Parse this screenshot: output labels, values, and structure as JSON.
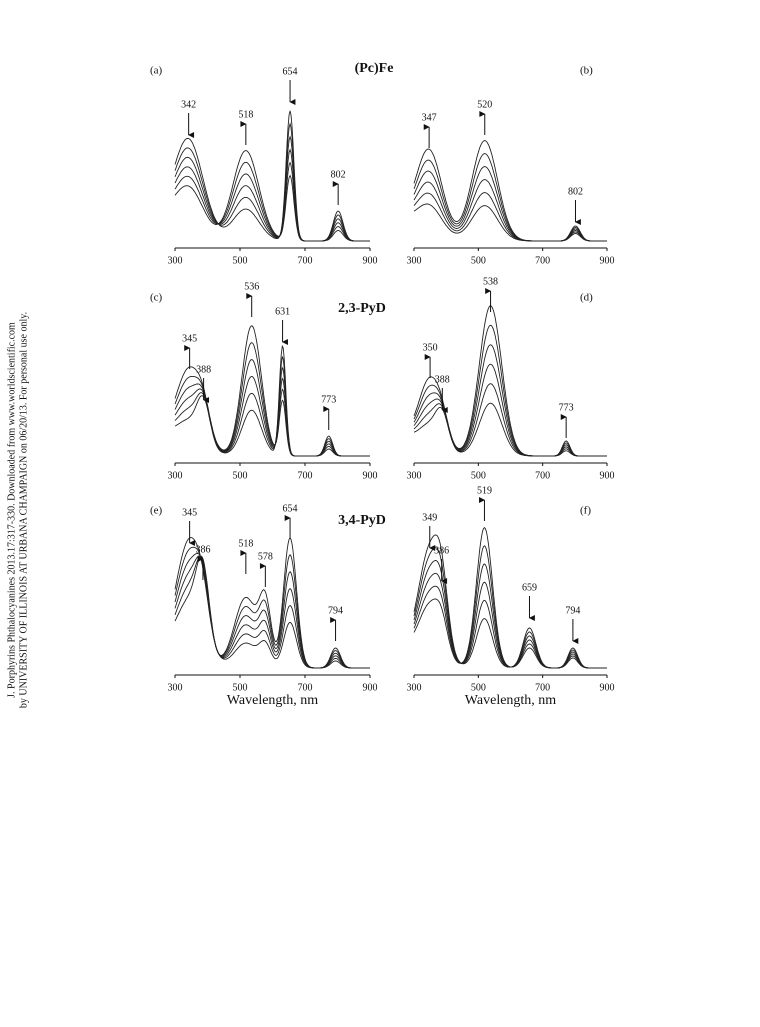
{
  "side_note": [
    "J. Porphyrins Phthalocyanines 2013.17:317-330. Downloaded from www.worldscientific.com",
    "by UNIVERSITY OF ILLINOIS AT URBANA CHAMPAIGN on 06/20/13. For personal use only."
  ],
  "rows": [
    {
      "compound": "(Pc)Fe"
    },
    {
      "compound": "2,3-PyD"
    },
    {
      "compound": "3,4-PyD"
    }
  ],
  "panels": [
    {
      "label": "(a)",
      "xticks": [
        300,
        500,
        700,
        900
      ],
      "peaks": [
        {
          "label": 342,
          "arrow": "down"
        },
        {
          "label": 518,
          "arrow": "up"
        },
        {
          "label": 654,
          "arrow": "down"
        },
        {
          "label": 802,
          "arrow": "up"
        }
      ]
    },
    {
      "label": "(b)",
      "xticks": [
        300,
        500,
        700,
        900
      ],
      "peaks": [
        {
          "label": 347,
          "arrow": "up"
        },
        {
          "label": 520,
          "arrow": "up"
        },
        {
          "label": 802,
          "arrow": "down"
        }
      ]
    },
    {
      "label": "(c)",
      "xticks": [
        300,
        500,
        700,
        900
      ],
      "peaks": [
        {
          "label": 345,
          "arrow": "up"
        },
        {
          "label": 388,
          "arrow": "down"
        },
        {
          "label": 536,
          "arrow": "up"
        },
        {
          "label": 631,
          "arrow": "down"
        },
        {
          "label": 773,
          "arrow": "up"
        }
      ]
    },
    {
      "label": "(d)",
      "xticks": [
        300,
        500,
        700,
        900
      ],
      "peaks": [
        {
          "label": 350,
          "arrow": "up"
        },
        {
          "label": 388,
          "arrow": "down"
        },
        {
          "label": 538,
          "arrow": "up"
        },
        {
          "label": 773,
          "arrow": "up"
        }
      ]
    },
    {
      "label": "(e)",
      "xticks": [
        300,
        500,
        700,
        900
      ],
      "xlabel": "Wavelength, nm",
      "peaks": [
        {
          "label": 345,
          "arrow": "down"
        },
        {
          "label": 386,
          "arrow": "up"
        },
        {
          "label": 518,
          "arrow": "up"
        },
        {
          "label": 578,
          "arrow": "up"
        },
        {
          "label": 654,
          "arrow": "up"
        },
        {
          "label": 794,
          "arrow": "up"
        }
      ]
    },
    {
      "label": "(f)",
      "xticks": [
        300,
        500,
        700,
        900
      ],
      "xlabel": "Wavelength, nm",
      "peaks": [
        {
          "label": 349,
          "arrow": "down"
        },
        {
          "label": 386,
          "arrow": "down"
        },
        {
          "label": 519,
          "arrow": "up"
        },
        {
          "label": 659,
          "arrow": "down"
        },
        {
          "label": 794,
          "arrow": "down"
        }
      ]
    }
  ]
}
